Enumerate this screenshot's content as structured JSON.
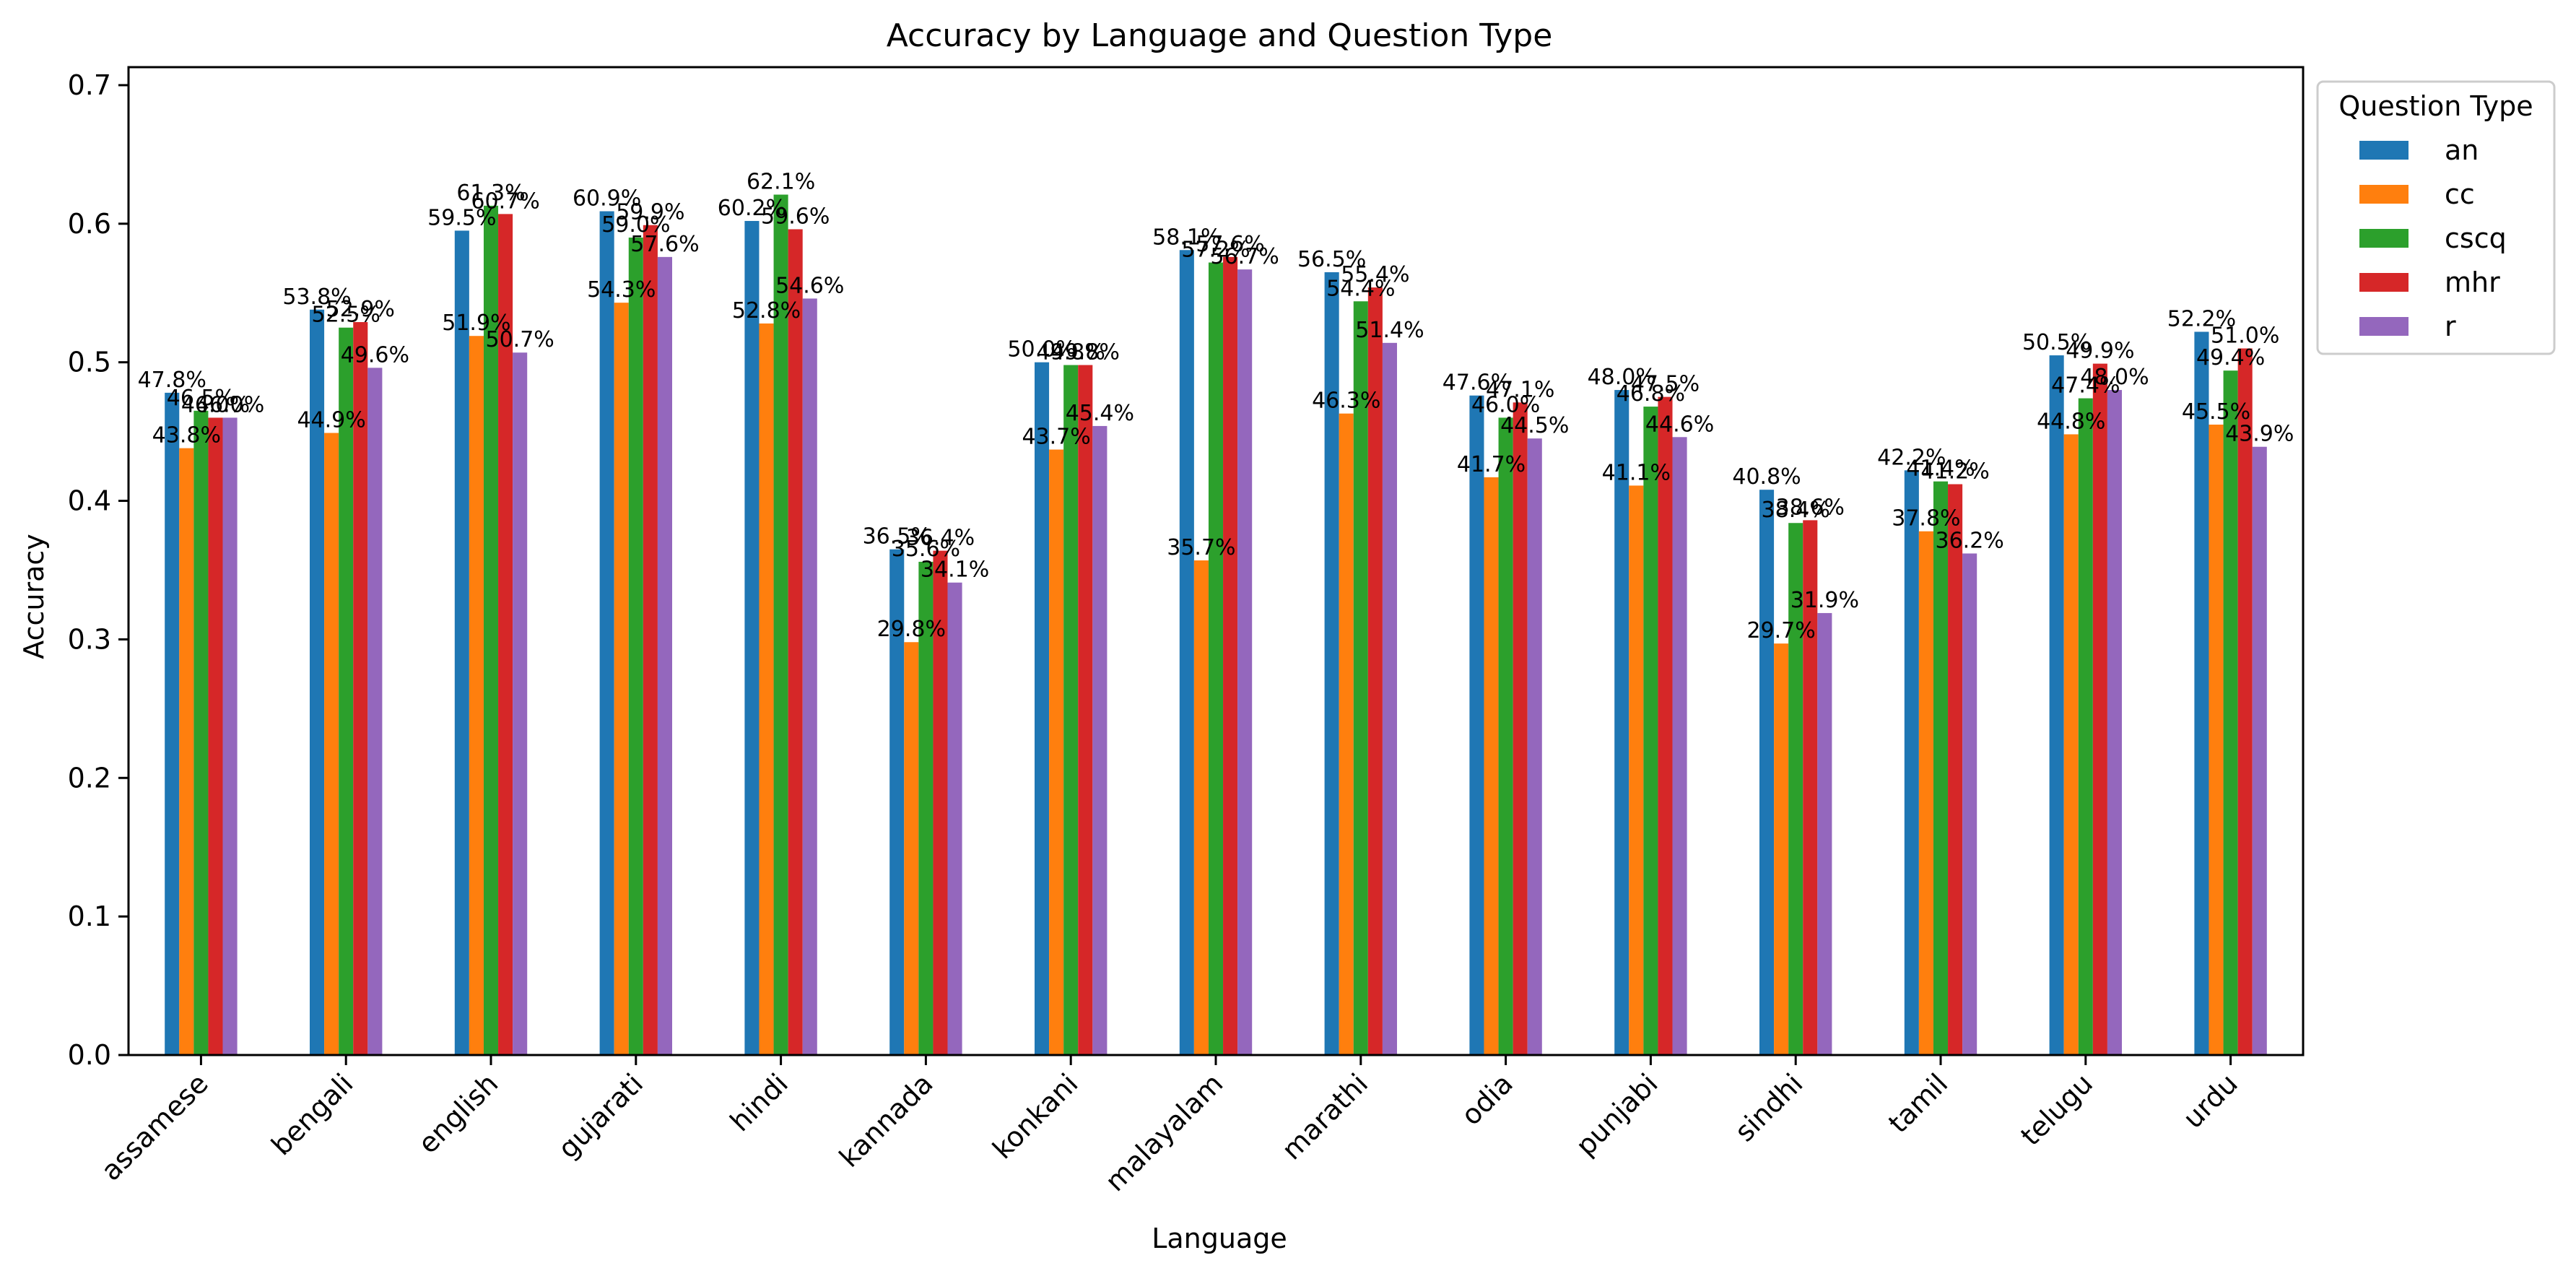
{
  "chart_data": {
    "type": "bar",
    "title": "Accuracy by Language and Question Type",
    "xlabel": "Language",
    "ylabel": "Accuracy",
    "ylim": [
      0,
      0.713
    ],
    "yticks": [
      "0.0",
      "0.1",
      "0.2",
      "0.3",
      "0.4",
      "0.5",
      "0.6",
      "0.7"
    ],
    "grid": false,
    "legend_title": "Question Type",
    "legend_position": "outside-top-right",
    "categories": [
      "assamese",
      "bengali",
      "english",
      "gujarati",
      "hindi",
      "kannada",
      "konkani",
      "malayalam",
      "marathi",
      "odia",
      "punjabi",
      "sindhi",
      "tamil",
      "telugu",
      "urdu"
    ],
    "series": [
      {
        "name": "an",
        "color": "#1f77b4",
        "values": [
          0.478,
          0.538,
          0.595,
          0.609,
          0.602,
          0.365,
          0.5,
          0.581,
          0.565,
          0.476,
          0.48,
          0.408,
          0.422,
          0.505,
          0.522
        ],
        "labels": [
          "47.8%",
          "53.8%",
          "59.5%",
          "60.9%",
          "60.2%",
          "36.5%",
          "50.0%",
          "58.1%",
          "56.5%",
          "47.6%",
          "48.0%",
          "40.8%",
          "42.2%",
          "50.5%",
          "52.2%"
        ]
      },
      {
        "name": "cc",
        "color": "#ff7f0e",
        "values": [
          0.438,
          0.449,
          0.519,
          0.543,
          0.528,
          0.298,
          0.437,
          0.357,
          0.463,
          0.417,
          0.411,
          0.297,
          0.378,
          0.448,
          0.455
        ],
        "labels": [
          "43.8%",
          "44.9%",
          "51.9%",
          "54.3%",
          "52.8%",
          "29.8%",
          "43.7%",
          "35.7%",
          "46.3%",
          "41.7%",
          "41.1%",
          "29.7%",
          "37.8%",
          "44.8%",
          "45.5%"
        ]
      },
      {
        "name": "cscq",
        "color": "#2ca02c",
        "values": [
          0.465,
          0.525,
          0.613,
          0.59,
          0.621,
          0.356,
          0.498,
          0.572,
          0.544,
          0.46,
          0.468,
          0.384,
          0.414,
          0.474,
          0.494
        ],
        "labels": [
          "46.5%",
          "52.5%",
          "61.3%",
          "59.0%",
          "62.1%",
          "35.6%",
          "49.8%",
          "57.2%",
          "54.4%",
          "46.0%",
          "46.8%",
          "38.4%",
          "41.4%",
          "47.4%",
          "49.4%"
        ]
      },
      {
        "name": "mhr",
        "color": "#d62728",
        "values": [
          0.46,
          0.529,
          0.607,
          0.599,
          0.596,
          0.364,
          0.498,
          0.576,
          0.554,
          0.471,
          0.475,
          0.386,
          0.412,
          0.499,
          0.51
        ],
        "labels": [
          "46.0%",
          "52.9%",
          "60.7%",
          "59.9%",
          "59.6%",
          "36.4%",
          "49.8%",
          "57.6%",
          "55.4%",
          "47.1%",
          "47.5%",
          "38.6%",
          "41.2%",
          "49.9%",
          "51.0%"
        ]
      },
      {
        "name": "r",
        "color": "#9467bd",
        "values": [
          0.46,
          0.496,
          0.507,
          0.576,
          0.546,
          0.341,
          0.454,
          0.567,
          0.514,
          0.445,
          0.446,
          0.319,
          0.362,
          0.48,
          0.439
        ],
        "labels": [
          "46.0%",
          "49.6%",
          "50.7%",
          "57.6%",
          "54.6%",
          "34.1%",
          "45.4%",
          "56.7%",
          "51.4%",
          "44.5%",
          "44.6%",
          "31.9%",
          "36.2%",
          "48.0%",
          "43.9%"
        ]
      }
    ]
  }
}
